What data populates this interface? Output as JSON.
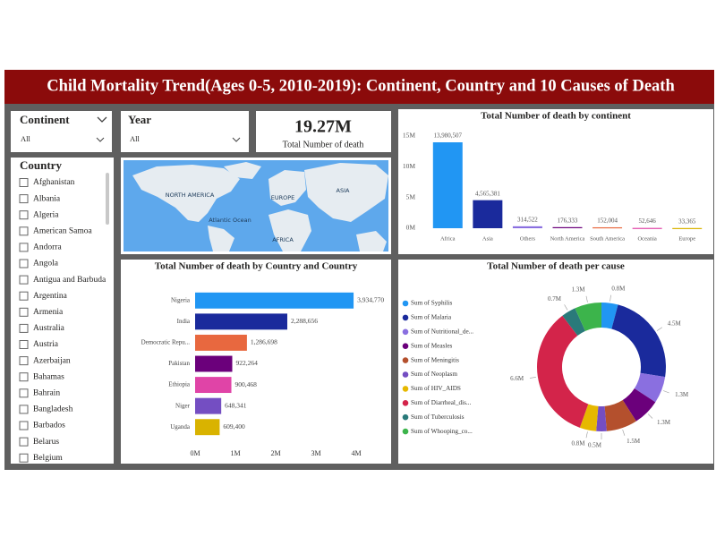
{
  "header": {
    "title": "Child Mortality Trend(Ages 0-5, 2010-2019): Continent, Country and 10 Causes of Death"
  },
  "slicers": {
    "continent": {
      "label": "Continent",
      "value": "All"
    },
    "year": {
      "label": "Year",
      "value": "All"
    },
    "country": {
      "label": "Country",
      "items": [
        "Afghanistan",
        "Albania",
        "Algeria",
        "American Samoa",
        "Andorra",
        "Angola",
        "Antigua and Barbuda",
        "Argentina",
        "Armenia",
        "Australia",
        "Austria",
        "Azerbaijan",
        "Bahamas",
        "Bahrain",
        "Bangladesh",
        "Barbados",
        "Belarus",
        "Belgium"
      ]
    }
  },
  "card": {
    "value": "19.27M",
    "label": "Total Number of death"
  },
  "map": {
    "labels": [
      "NORTH AMERICA",
      "EUROPE",
      "ASIA",
      "Atlantic Ocean",
      "AFRICA"
    ]
  },
  "chart_data": [
    {
      "type": "bar",
      "title": "Total Number of death by continent",
      "categories": [
        "Africa",
        "Asia",
        "Others",
        "North America",
        "South America",
        "Oceania",
        "Europe"
      ],
      "values": [
        13980507,
        4565381,
        314522,
        176333,
        152004,
        52646,
        33365
      ],
      "value_labels": [
        "13,980,507",
        "4,565,381",
        "314,522",
        "176,333",
        "152,004",
        "52,646",
        "33,365"
      ],
      "colors": [
        "#2196f3",
        "#1a2a9c",
        "#8a6fe0",
        "#6b007b",
        "#e8683f",
        "#e044a7",
        "#d9b300"
      ],
      "ylim": [
        0,
        15000000
      ],
      "yticks": [
        {
          "value": 0,
          "label": "0M"
        },
        {
          "value": 5000000,
          "label": "5M"
        },
        {
          "value": 10000000,
          "label": "10M"
        },
        {
          "value": 15000000,
          "label": "15M"
        }
      ],
      "grid": false
    },
    {
      "type": "hbar",
      "title": "Total Number of death by Country and Country",
      "categories": [
        "Nigeria",
        "India",
        "Democratic Repu...",
        "Pakistan",
        "Ethiopia",
        "Niger",
        "Uganda"
      ],
      "values": [
        3934770,
        2288656,
        1286698,
        922264,
        900468,
        648341,
        609400
      ],
      "value_labels": [
        "3,934,770",
        "2,288,656",
        "1,286,698",
        "922,264",
        "900,468",
        "648,341",
        "609,400"
      ],
      "colors": [
        "#2196f3",
        "#1a2a9c",
        "#e8683f",
        "#6b007b",
        "#e044a7",
        "#744ec2",
        "#d9b300"
      ],
      "xlim": [
        0,
        4000000
      ],
      "xticks": [
        {
          "value": 0,
          "label": "0M"
        },
        {
          "value": 1000000,
          "label": "1M"
        },
        {
          "value": 2000000,
          "label": "2M"
        },
        {
          "value": 3000000,
          "label": "3M"
        },
        {
          "value": 4000000,
          "label": "4M"
        }
      ]
    },
    {
      "type": "donut",
      "title": "Total Number of death per cause",
      "categories": [
        "Sum of Syphilis",
        "Sum of Malaria",
        "Sum of Nutritional_de...",
        "Sum of Measles",
        "Sum of Meningitis",
        "Sum of Neoplasm",
        "Sum of HIV_AIDS",
        "Sum of Diarrheal_dis...",
        "Sum of Tuberculosis",
        "Sum of Whooping_co..."
      ],
      "values": [
        0.8,
        4.5,
        1.3,
        1.3,
        1.5,
        0.5,
        0.8,
        6.6,
        0.7,
        1.3
      ],
      "value_labels": [
        "0.8M",
        "4.5M",
        "1.3M",
        "1.3M",
        "1.5M",
        "0.5M",
        "0.8M",
        "6.6M",
        "0.7M",
        "1.3M"
      ],
      "colors": [
        "#2196f3",
        "#1a2a9c",
        "#8a6fe0",
        "#6b007b",
        "#b4502d",
        "#744ec2",
        "#e6b800",
        "#d3244a",
        "#2a7a7a",
        "#3cb44b"
      ]
    }
  ]
}
